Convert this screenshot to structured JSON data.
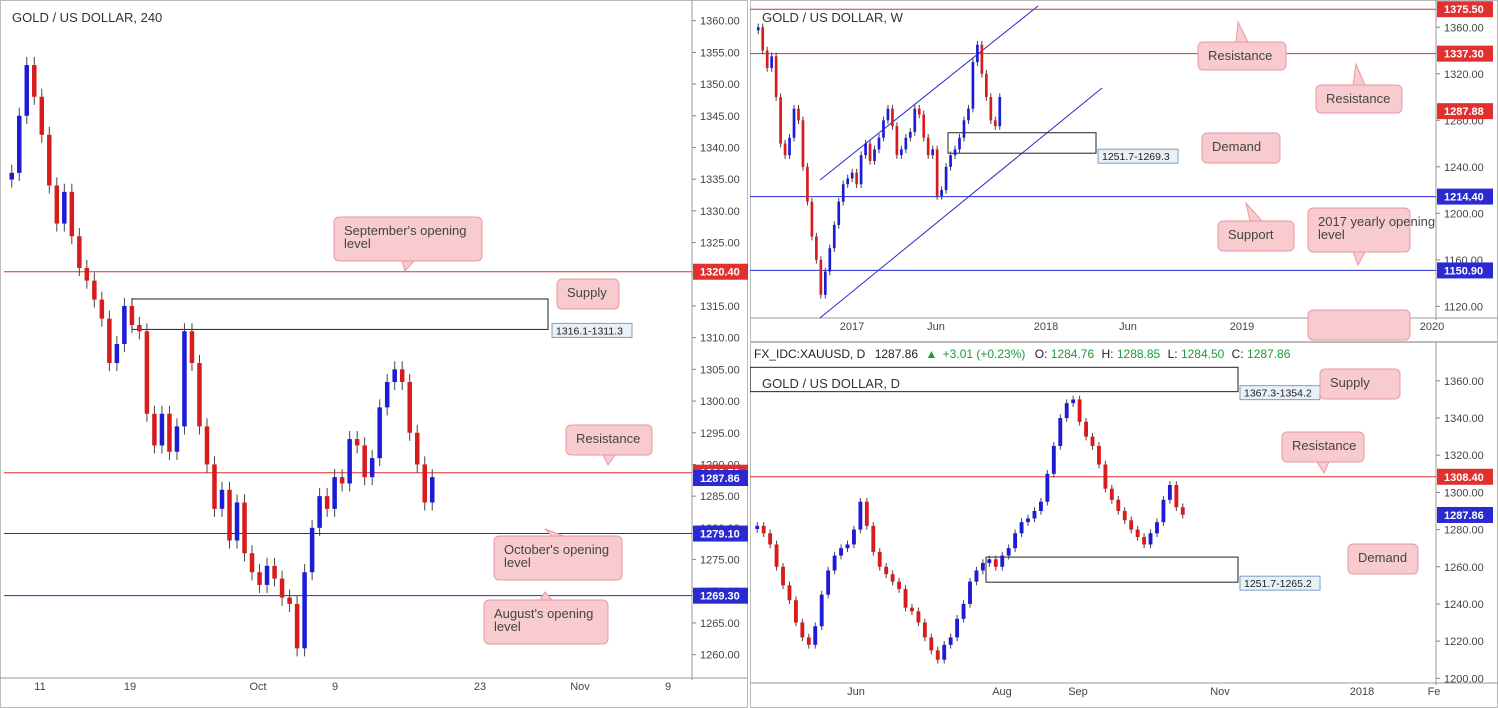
{
  "colors": {
    "up": "#1c1cd6",
    "down": "#d81c1c",
    "red_line": "#e03030",
    "blue_line": "#2a2ad0",
    "note_bg": "#f7cbcf",
    "note_border": "#e89aa2",
    "axis_border": "#999999"
  },
  "chart_data": [
    {
      "id": "h4",
      "type": "candlestick",
      "title": "GOLD / US DOLLAR, 240",
      "ylim": [
        1256,
        1362
      ],
      "y_ticks": [
        "1360.00",
        "1355.00",
        "1350.00",
        "1345.00",
        "1340.00",
        "1335.00",
        "1330.00",
        "1325.00",
        "1320.00",
        "1315.00",
        "1310.00",
        "1305.00",
        "1300.00",
        "1295.00",
        "1290.00",
        "1285.00",
        "1280.00",
        "1275.00",
        "1270.00",
        "1265.00",
        "1260.00"
      ],
      "x_labels": [
        "11",
        "19",
        "Oct",
        "9",
        "23",
        "Nov",
        "9"
      ],
      "levels": [
        {
          "value": 1320.4,
          "label": "1320.40",
          "color": "red"
        },
        {
          "value": 1288.7,
          "label": "1288.70",
          "color": "red"
        },
        {
          "value": 1287.86,
          "label": "1287.86",
          "color": "blue"
        },
        {
          "value": 1279.1,
          "label": "1279.10",
          "color": "blue"
        },
        {
          "value": 1269.3,
          "label": "1269.30",
          "color": "blue"
        }
      ],
      "zones": [
        {
          "from": 1311.3,
          "to": 1316.1,
          "label": "1316.1-1311.3"
        }
      ],
      "annotations": [
        "September's opening level",
        "Supply",
        "Resistance",
        "October's opening level",
        "August's opening level"
      ],
      "series_close": [
        1336,
        1345,
        1353,
        1348,
        1342,
        1334,
        1328,
        1333,
        1326,
        1321,
        1319,
        1316,
        1313,
        1306,
        1309,
        1315,
        1312,
        1311,
        1298,
        1293,
        1298,
        1292,
        1296,
        1311,
        1306,
        1296,
        1290,
        1283,
        1286,
        1278,
        1284,
        1276,
        1273,
        1271,
        1274,
        1272,
        1269,
        1268,
        1261,
        1273,
        1280,
        1285,
        1283,
        1288,
        1287,
        1294,
        1293,
        1288,
        1291,
        1299,
        1303,
        1305,
        1303,
        1295,
        1290,
        1284,
        1288
      ]
    },
    {
      "id": "weekly",
      "type": "candlestick",
      "title": "GOLD / US DOLLAR, W",
      "ylim": [
        1110,
        1380
      ],
      "y_ticks": [
        "1360.00",
        "1320.00",
        "1280.00",
        "1240.00",
        "1200.00",
        "1160.00",
        "1120.00"
      ],
      "x_labels": [
        "2017",
        "Jun",
        "2018",
        "Jun",
        "2019",
        "Jun",
        "2020"
      ],
      "levels": [
        {
          "value": 1375.5,
          "label": "1375.50",
          "color": "red"
        },
        {
          "value": 1337.3,
          "label": "1337.30",
          "color": "red"
        },
        {
          "value": 1287.88,
          "label": "1287.88",
          "color": "red"
        },
        {
          "value": 1214.4,
          "label": "1214.40",
          "color": "blue"
        },
        {
          "value": 1150.9,
          "label": "1150.90",
          "color": "blue"
        }
      ],
      "zones": [
        {
          "from": 1251.7,
          "to": 1269.3,
          "label": "1251.7-1269.3"
        }
      ],
      "annotations": [
        "Resistance",
        "Resistance",
        "Demand",
        "Support",
        "2017 yearly opening level"
      ],
      "series_close": [
        1360,
        1340,
        1325,
        1335,
        1300,
        1260,
        1250,
        1265,
        1290,
        1280,
        1240,
        1210,
        1180,
        1160,
        1130,
        1150,
        1170,
        1190,
        1210,
        1225,
        1230,
        1235,
        1225,
        1250,
        1260,
        1245,
        1255,
        1265,
        1280,
        1290,
        1275,
        1250,
        1255,
        1265,
        1270,
        1290,
        1285,
        1265,
        1250,
        1255,
        1215,
        1220,
        1240,
        1250,
        1255,
        1265,
        1280,
        1290,
        1330,
        1345,
        1320,
        1300,
        1280,
        1275,
        1300
      ]
    },
    {
      "id": "daily",
      "type": "candlestick",
      "title": "GOLD / US DOLLAR, D",
      "symbol_header": {
        "symbol": "FX_IDC:XAUUSD, D",
        "last": "1287.86",
        "change": "+3.01 (+0.23%)",
        "o_label": "O:",
        "o": "1284.76",
        "h_label": "H:",
        "h": "1288.85",
        "l_label": "L:",
        "l": "1284.50",
        "c_label": "C:",
        "c": "1287.86"
      },
      "ylim": [
        1198,
        1368
      ],
      "y_ticks": [
        "1360.00",
        "1340.00",
        "1320.00",
        "1300.00",
        "1280.00",
        "1260.00",
        "1240.00",
        "1220.00",
        "1200.00"
      ],
      "x_labels": [
        "Jun",
        "Aug",
        "Sep",
        "Nov",
        "2018",
        "Fe"
      ],
      "levels": [
        {
          "value": 1308.4,
          "label": "1308.40",
          "color": "red"
        },
        {
          "value": 1287.86,
          "label": "1287.86",
          "color": "blue"
        }
      ],
      "zones": [
        {
          "from": 1354.2,
          "to": 1367.3,
          "label": "1367.3-1354.2"
        },
        {
          "from": 1251.7,
          "to": 1265.2,
          "label": "1251.7-1265.2"
        }
      ],
      "annotations": [
        "Supply",
        "Resistance",
        "Demand"
      ],
      "series_close": [
        1282,
        1278,
        1272,
        1260,
        1250,
        1242,
        1230,
        1222,
        1218,
        1228,
        1245,
        1258,
        1266,
        1270,
        1272,
        1280,
        1295,
        1282,
        1268,
        1260,
        1256,
        1252,
        1248,
        1238,
        1236,
        1230,
        1222,
        1215,
        1210,
        1218,
        1222,
        1232,
        1240,
        1252,
        1258,
        1262,
        1264,
        1260,
        1266,
        1270,
        1278,
        1284,
        1286,
        1290,
        1295,
        1310,
        1325,
        1340,
        1348,
        1350,
        1338,
        1330,
        1325,
        1315,
        1302,
        1296,
        1290,
        1285,
        1280,
        1276,
        1272,
        1278,
        1284,
        1296,
        1304,
        1292,
        1288
      ]
    }
  ]
}
